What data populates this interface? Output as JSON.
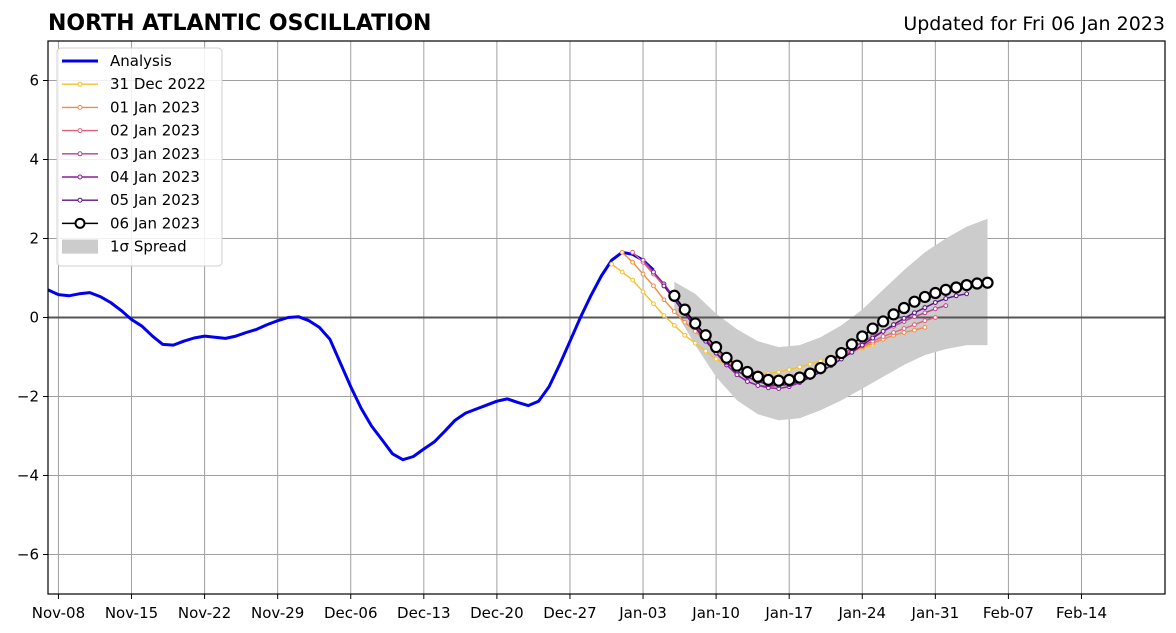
{
  "header": {
    "title": "NORTH ATLANTIC OSCILLATION",
    "updated": "Updated for Fri 06 Jan 2023"
  },
  "chart_data": {
    "type": "line",
    "title": "NORTH ATLANTIC OSCILLATION",
    "subtitle": "Updated for Fri 06 Jan 2023",
    "xlabel": "",
    "ylabel": "",
    "x_unit": "days since 2022-11-07",
    "xlim": [
      "2022-11-07",
      "2023-02-22"
    ],
    "ylim": [
      -7,
      7
    ],
    "grid": true,
    "legend_position": "top-left",
    "yticks": [
      -6,
      -4,
      -2,
      0,
      2,
      4,
      6
    ],
    "yticklabels": [
      "−6",
      "−4",
      "−2",
      "0",
      "2",
      "4",
      "6"
    ],
    "xticks": [
      {
        "date": "2022-11-08",
        "label": "Nov-08"
      },
      {
        "date": "2022-11-15",
        "label": "Nov-15"
      },
      {
        "date": "2022-11-22",
        "label": "Nov-22"
      },
      {
        "date": "2022-11-29",
        "label": "Nov-29"
      },
      {
        "date": "2022-12-06",
        "label": "Dec-06"
      },
      {
        "date": "2022-12-13",
        "label": "Dec-13"
      },
      {
        "date": "2022-12-20",
        "label": "Dec-20"
      },
      {
        "date": "2022-12-27",
        "label": "Dec-27"
      },
      {
        "date": "2023-01-03",
        "label": "Jan-03"
      },
      {
        "date": "2023-01-10",
        "label": "Jan-10"
      },
      {
        "date": "2023-01-17",
        "label": "Jan-17"
      },
      {
        "date": "2023-01-24",
        "label": "Jan-24"
      },
      {
        "date": "2023-01-31",
        "label": "Jan-31"
      },
      {
        "date": "2023-02-07",
        "label": "Feb-07"
      },
      {
        "date": "2023-02-14",
        "label": "Feb-14"
      }
    ],
    "spread": {
      "name": "1σ Spread",
      "color": "#cccccc",
      "x": [
        "2023-01-06",
        "2023-01-08",
        "2023-01-10",
        "2023-01-12",
        "2023-01-14",
        "2023-01-16",
        "2023-01-18",
        "2023-01-20",
        "2023-01-22",
        "2023-01-24",
        "2023-01-26",
        "2023-01-28",
        "2023-01-30",
        "2023-02-01",
        "2023-02-03",
        "2023-02-05"
      ],
      "upper": [
        0.9,
        0.6,
        0.1,
        -0.3,
        -0.6,
        -0.75,
        -0.7,
        -0.5,
        -0.2,
        0.2,
        0.7,
        1.2,
        1.65,
        2.0,
        2.3,
        2.5
      ],
      "lower": [
        0.2,
        -0.7,
        -1.5,
        -2.1,
        -2.45,
        -2.6,
        -2.55,
        -2.35,
        -2.1,
        -1.8,
        -1.5,
        -1.2,
        -0.95,
        -0.8,
        -0.7,
        -0.7
      ]
    },
    "series": [
      {
        "name": "Analysis",
        "color": "#0000ee",
        "kind": "analysis",
        "x": [
          "2022-11-07",
          "2022-11-08",
          "2022-11-09",
          "2022-11-10",
          "2022-11-11",
          "2022-11-12",
          "2022-11-13",
          "2022-11-14",
          "2022-11-15",
          "2022-11-16",
          "2022-11-17",
          "2022-11-18",
          "2022-11-19",
          "2022-11-20",
          "2022-11-21",
          "2022-11-22",
          "2022-11-23",
          "2022-11-24",
          "2022-11-25",
          "2022-11-26",
          "2022-11-27",
          "2022-11-28",
          "2022-11-29",
          "2022-11-30",
          "2022-12-01",
          "2022-12-02",
          "2022-12-03",
          "2022-12-04",
          "2022-12-05",
          "2022-12-06",
          "2022-12-07",
          "2022-12-08",
          "2022-12-09",
          "2022-12-10",
          "2022-12-11",
          "2022-12-12",
          "2022-12-13",
          "2022-12-14",
          "2022-12-15",
          "2022-12-16",
          "2022-12-17",
          "2022-12-18",
          "2022-12-19",
          "2022-12-20",
          "2022-12-21",
          "2022-12-22",
          "2022-12-23",
          "2022-12-24",
          "2022-12-25",
          "2022-12-26",
          "2022-12-27",
          "2022-12-28",
          "2022-12-29",
          "2022-12-30",
          "2022-12-31",
          "2023-01-01",
          "2023-01-02",
          "2023-01-03",
          "2023-01-04"
        ],
        "y": [
          0.7,
          0.58,
          0.55,
          0.6,
          0.63,
          0.53,
          0.38,
          0.18,
          -0.05,
          -0.22,
          -0.47,
          -0.68,
          -0.7,
          -0.6,
          -0.52,
          -0.47,
          -0.5,
          -0.53,
          -0.47,
          -0.38,
          -0.3,
          -0.18,
          -0.08,
          0.0,
          0.02,
          -0.08,
          -0.25,
          -0.55,
          -1.15,
          -1.75,
          -2.3,
          -2.75,
          -3.1,
          -3.45,
          -3.6,
          -3.52,
          -3.33,
          -3.15,
          -2.88,
          -2.6,
          -2.42,
          -2.32,
          -2.22,
          -2.12,
          -2.06,
          -2.15,
          -2.23,
          -2.12,
          -1.75,
          -1.2,
          -0.6,
          0.0,
          0.55,
          1.05,
          1.45,
          1.65,
          1.6,
          1.45,
          1.2
        ]
      },
      {
        "name": "31 Dec 2022",
        "color": "#f5c02a",
        "kind": "forecast",
        "x": [
          "2022-12-31",
          "2023-01-01",
          "2023-01-02",
          "2023-01-03",
          "2023-01-04",
          "2023-01-05",
          "2023-01-06",
          "2023-01-07",
          "2023-01-08",
          "2023-01-09",
          "2023-01-10",
          "2023-01-11",
          "2023-01-12",
          "2023-01-13",
          "2023-01-14",
          "2023-01-15",
          "2023-01-16",
          "2023-01-17",
          "2023-01-18",
          "2023-01-19",
          "2023-01-20",
          "2023-01-21",
          "2023-01-22",
          "2023-01-23",
          "2023-01-24",
          "2023-01-25"
        ],
        "y": [
          1.35,
          1.15,
          0.95,
          0.65,
          0.35,
          0.05,
          -0.2,
          -0.45,
          -0.65,
          -0.85,
          -1.05,
          -1.2,
          -1.3,
          -1.35,
          -1.4,
          -1.42,
          -1.38,
          -1.32,
          -1.25,
          -1.18,
          -1.1,
          -1.0,
          -0.92,
          -0.85,
          -0.78,
          -0.7
        ]
      },
      {
        "name": "01 Jan 2023",
        "color": "#f58a45",
        "kind": "forecast",
        "x": [
          "2023-01-01",
          "2023-01-02",
          "2023-01-03",
          "2023-01-04",
          "2023-01-05",
          "2023-01-06",
          "2023-01-07",
          "2023-01-08",
          "2023-01-09",
          "2023-01-10",
          "2023-01-11",
          "2023-01-12",
          "2023-01-13",
          "2023-01-14",
          "2023-01-15",
          "2023-01-16",
          "2023-01-17",
          "2023-01-18",
          "2023-01-19",
          "2023-01-20",
          "2023-01-21",
          "2023-01-22",
          "2023-01-23",
          "2023-01-24",
          "2023-01-25",
          "2023-01-26",
          "2023-01-27",
          "2023-01-28",
          "2023-01-29",
          "2023-01-30"
        ],
        "y": [
          1.65,
          1.4,
          1.1,
          0.8,
          0.45,
          0.15,
          -0.12,
          -0.35,
          -0.58,
          -0.8,
          -1.0,
          -1.18,
          -1.32,
          -1.42,
          -1.48,
          -1.5,
          -1.48,
          -1.42,
          -1.35,
          -1.25,
          -1.12,
          -1.0,
          -0.88,
          -0.75,
          -0.65,
          -0.55,
          -0.45,
          -0.38,
          -0.32,
          -0.25
        ]
      },
      {
        "name": "02 Jan 2023",
        "color": "#e0607a",
        "kind": "forecast",
        "x": [
          "2023-01-02",
          "2023-01-03",
          "2023-01-04",
          "2023-01-05",
          "2023-01-06",
          "2023-01-07",
          "2023-01-08",
          "2023-01-09",
          "2023-01-10",
          "2023-01-11",
          "2023-01-12",
          "2023-01-13",
          "2023-01-14",
          "2023-01-15",
          "2023-01-16",
          "2023-01-17",
          "2023-01-18",
          "2023-01-19",
          "2023-01-20",
          "2023-01-21",
          "2023-01-22",
          "2023-01-23",
          "2023-01-24",
          "2023-01-25",
          "2023-01-26",
          "2023-01-27",
          "2023-01-28",
          "2023-01-29",
          "2023-01-30",
          "2023-01-31"
        ],
        "y": [
          1.65,
          1.4,
          1.1,
          0.8,
          0.45,
          0.12,
          -0.2,
          -0.5,
          -0.8,
          -1.1,
          -1.35,
          -1.52,
          -1.62,
          -1.65,
          -1.62,
          -1.55,
          -1.45,
          -1.35,
          -1.22,
          -1.1,
          -0.98,
          -0.85,
          -0.72,
          -0.6,
          -0.48,
          -0.38,
          -0.28,
          -0.18,
          -0.08,
          0.0
        ]
      },
      {
        "name": "03 Jan 2023",
        "color": "#b8408e",
        "kind": "forecast",
        "x": [
          "2023-01-03",
          "2023-01-04",
          "2023-01-05",
          "2023-01-06",
          "2023-01-07",
          "2023-01-08",
          "2023-01-09",
          "2023-01-10",
          "2023-01-11",
          "2023-01-12",
          "2023-01-13",
          "2023-01-14",
          "2023-01-15",
          "2023-01-16",
          "2023-01-17",
          "2023-01-18",
          "2023-01-19",
          "2023-01-20",
          "2023-01-21",
          "2023-01-22",
          "2023-01-23",
          "2023-01-24",
          "2023-01-25",
          "2023-01-26",
          "2023-01-27",
          "2023-01-28",
          "2023-01-29",
          "2023-01-30",
          "2023-01-31",
          "2023-02-01"
        ],
        "y": [
          1.45,
          1.15,
          0.85,
          0.5,
          0.15,
          -0.2,
          -0.55,
          -0.9,
          -1.2,
          -1.45,
          -1.62,
          -1.72,
          -1.75,
          -1.72,
          -1.65,
          -1.55,
          -1.42,
          -1.28,
          -1.12,
          -0.95,
          -0.78,
          -0.62,
          -0.48,
          -0.35,
          -0.22,
          -0.1,
          0.02,
          0.12,
          0.22,
          0.3
        ]
      },
      {
        "name": "04 Jan 2023",
        "color": "#8a1f9c",
        "kind": "forecast",
        "x": [
          "2023-01-04",
          "2023-01-05",
          "2023-01-06",
          "2023-01-07",
          "2023-01-08",
          "2023-01-09",
          "2023-01-10",
          "2023-01-11",
          "2023-01-12",
          "2023-01-13",
          "2023-01-14",
          "2023-01-15",
          "2023-01-16",
          "2023-01-17",
          "2023-01-18",
          "2023-01-19",
          "2023-01-20",
          "2023-01-21",
          "2023-01-22",
          "2023-01-23",
          "2023-01-24",
          "2023-01-25",
          "2023-01-26",
          "2023-01-27",
          "2023-01-28",
          "2023-01-29",
          "2023-01-30",
          "2023-01-31",
          "2023-02-01",
          "2023-02-02"
        ],
        "y": [
          1.15,
          0.85,
          0.5,
          0.15,
          -0.2,
          -0.55,
          -0.9,
          -1.2,
          -1.45,
          -1.62,
          -1.72,
          -1.78,
          -1.8,
          -1.75,
          -1.65,
          -1.52,
          -1.38,
          -1.22,
          -1.05,
          -0.88,
          -0.7,
          -0.52,
          -0.35,
          -0.18,
          -0.02,
          0.12,
          0.25,
          0.38,
          0.48,
          0.55
        ]
      },
      {
        "name": "05 Jan 2023",
        "color": "#5a148c",
        "kind": "forecast",
        "x": [
          "2023-01-05",
          "2023-01-06",
          "2023-01-07",
          "2023-01-08",
          "2023-01-09",
          "2023-01-10",
          "2023-01-11",
          "2023-01-12",
          "2023-01-13",
          "2023-01-14",
          "2023-01-15",
          "2023-01-16",
          "2023-01-17",
          "2023-01-18",
          "2023-01-19",
          "2023-01-20",
          "2023-01-21",
          "2023-01-22",
          "2023-01-23",
          "2023-01-24",
          "2023-01-25",
          "2023-01-26",
          "2023-01-27",
          "2023-01-28",
          "2023-01-29",
          "2023-01-30",
          "2023-01-31",
          "2023-02-01",
          "2023-02-02",
          "2023-02-03"
        ],
        "y": [
          0.8,
          0.45,
          0.1,
          -0.25,
          -0.6,
          -0.9,
          -1.15,
          -1.35,
          -1.5,
          -1.62,
          -1.7,
          -1.72,
          -1.7,
          -1.62,
          -1.52,
          -1.38,
          -1.22,
          -1.05,
          -0.88,
          -0.7,
          -0.52,
          -0.35,
          -0.18,
          -0.02,
          0.12,
          0.25,
          0.38,
          0.48,
          0.55,
          0.6
        ]
      },
      {
        "name": "06 Jan 2023",
        "color": "#000000",
        "kind": "latest",
        "x": [
          "2023-01-06",
          "2023-01-07",
          "2023-01-08",
          "2023-01-09",
          "2023-01-10",
          "2023-01-11",
          "2023-01-12",
          "2023-01-13",
          "2023-01-14",
          "2023-01-15",
          "2023-01-16",
          "2023-01-17",
          "2023-01-18",
          "2023-01-19",
          "2023-01-20",
          "2023-01-21",
          "2023-01-22",
          "2023-01-23",
          "2023-01-24",
          "2023-01-25",
          "2023-01-26",
          "2023-01-27",
          "2023-01-28",
          "2023-01-29",
          "2023-01-30",
          "2023-01-31",
          "2023-02-01",
          "2023-02-02",
          "2023-02-03",
          "2023-02-04",
          "2023-02-05"
        ],
        "y": [
          0.55,
          0.2,
          -0.15,
          -0.45,
          -0.75,
          -1.02,
          -1.22,
          -1.38,
          -1.5,
          -1.58,
          -1.6,
          -1.58,
          -1.52,
          -1.42,
          -1.28,
          -1.1,
          -0.9,
          -0.68,
          -0.48,
          -0.28,
          -0.1,
          0.08,
          0.24,
          0.4,
          0.52,
          0.62,
          0.7,
          0.76,
          0.82,
          0.86,
          0.88
        ]
      }
    ]
  }
}
